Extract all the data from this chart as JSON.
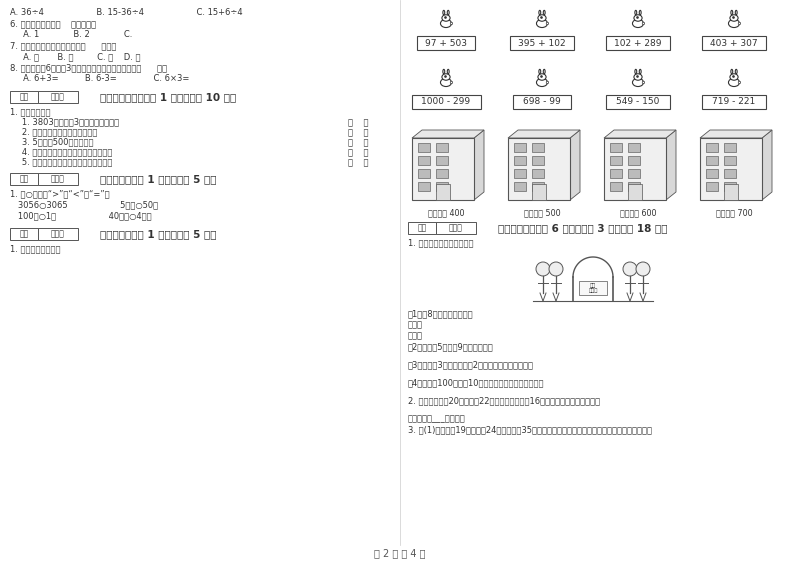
{
  "bg_color": "#ffffff",
  "text_color": "#333333",
  "page_footer": "第 2 页 共 4 页",
  "left_col": {
    "top_items": [
      "A. 36÷4                    B. 15-36÷4                    C. 15+6÷4",
      "6. 一个三角板上有（    ）个直角。",
      "     A. 1             B. 2             C.",
      "7. 一个四位数，它的最高位是（      ）位。",
      "     A. 千       B. 百         C. 十    D. 个",
      "8. 每只小猫锤6条鱼，3只小猫锤多少条鱼？列算式是（      ）。",
      "     A. 6+3=          B. 6-3=              C. 6×3="
    ],
    "section5_title": "五、判断对与错（共 1 大题，共计 10 分）",
    "section5_items": [
      "1. 我知道对错。",
      "   1. 3803中的两个3表示的意思相同。",
      "   2. 三位数不一定都比四位数小。",
      "   3. 5千米与500米一样长。",
      "   4. 读数和写数都是从最高位开始读写。",
      "   5. 早晨面向太阳，后面是西，左面北。"
    ],
    "section6_title": "六、比一比（共 1 大题，共计 5 分）",
    "section6_items": [
      "1. 在○里填上“>”，“<”或“=”。",
      "   3056○3065                    5千米○50米",
      "   100分○1时                    40厘米○4分米"
    ],
    "section7_title": "七、连一连（共 1 大题，共计 5 分）",
    "section7_items": [
      "1. 估一估，连一连。"
    ]
  },
  "right_col": {
    "rabbit_row1": [
      "97 + 503",
      "395 + 102",
      "102 + 289",
      "403 + 307"
    ],
    "rabbit_row2": [
      "1000 - 299",
      "698 - 99",
      "549 - 150",
      "719 - 221"
    ],
    "building_labels": [
      "得数接近 400",
      "得数大约 500",
      "得数接近 600",
      "得数大约 700"
    ],
    "section8_title": "八、解决问题（共 6 小题，每题 3 分，共计 18 分）",
    "section8_items": [
      "1. 星期日同学们去游乐园。",
      "（1）战8张门票用多少元？",
      "乘法：",
      "加法：",
      "（2）小明扐5元，拹9张门票够吗？",
      " ",
      "（3）小红买3张门票，还刴2元錢，小红带了多少錢？",
      " ",
      "（4）小红拹100元，戒10张门票，还可以剩下多少錢？",
      " ",
      "2. 二年级一班有20名男生，22名女生，平均分成16个小组，每组有几名同学？",
      " ",
      "答：每组有___名同学。",
      "3. 二(1)班有男生19人，女生24人，一共有35个苹果，如果每人分一个苹果，有多少人分不到苹果？"
    ]
  }
}
